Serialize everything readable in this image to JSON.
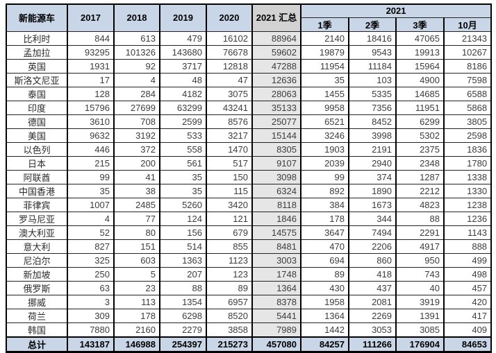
{
  "chart_data": {
    "type": "table",
    "corner_header": "新能源车",
    "year_headers": [
      "2017",
      "2018",
      "2019",
      "2020"
    ],
    "summary_header": "2021 汇总",
    "group_header": "2021",
    "sub_headers": [
      "1季",
      "2季",
      "3季",
      "10月"
    ],
    "rows": [
      {
        "name": "比利时",
        "values": [
          844,
          613,
          479,
          16102,
          88964,
          2140,
          18416,
          47065,
          21343
        ]
      },
      {
        "name": "孟加拉",
        "values": [
          93295,
          101326,
          143680,
          76678,
          59602,
          19879,
          9543,
          19913,
          10267
        ]
      },
      {
        "name": "英国",
        "values": [
          1931,
          92,
          3717,
          12818,
          47288,
          11954,
          11184,
          15964,
          8186
        ]
      },
      {
        "name": "斯洛文尼亚",
        "values": [
          17,
          4,
          48,
          47,
          12636,
          35,
          103,
          4900,
          7598
        ]
      },
      {
        "name": "泰国",
        "values": [
          128,
          284,
          4182,
          3075,
          28063,
          1455,
          5335,
          14685,
          6588
        ]
      },
      {
        "name": "印度",
        "values": [
          15796,
          27699,
          63299,
          43241,
          35133,
          9958,
          7356,
          11951,
          5868
        ]
      },
      {
        "name": "德国",
        "values": [
          3610,
          708,
          2599,
          8576,
          25077,
          6521,
          8452,
          6299,
          3805
        ]
      },
      {
        "name": "美国",
        "values": [
          9632,
          3192,
          533,
          3217,
          15144,
          3246,
          3998,
          5302,
          2598
        ]
      },
      {
        "name": "以色列",
        "values": [
          446,
          372,
          558,
          1470,
          8305,
          1903,
          2191,
          2375,
          1836
        ]
      },
      {
        "name": "日本",
        "values": [
          215,
          200,
          561,
          517,
          9107,
          2039,
          2940,
          2348,
          1780
        ]
      },
      {
        "name": "阿联酋",
        "values": [
          99,
          41,
          35,
          150,
          3098,
          99,
          374,
          1287,
          1338
        ]
      },
      {
        "name": "中国香港",
        "values": [
          35,
          38,
          35,
          115,
          6324,
          892,
          1890,
          2212,
          1330
        ]
      },
      {
        "name": "菲律宾",
        "values": [
          1007,
          2485,
          5260,
          3420,
          8118,
          384,
          1673,
          4823,
          1238
        ]
      },
      {
        "name": "罗马尼亚",
        "values": [
          4,
          77,
          124,
          121,
          1846,
          178,
          344,
          88,
          1236
        ]
      },
      {
        "name": "澳大利亚",
        "values": [
          52,
          80,
          156,
          679,
          14575,
          3647,
          7494,
          2291,
          1143
        ]
      },
      {
        "name": "意大利",
        "values": [
          827,
          151,
          514,
          855,
          8481,
          470,
          2206,
          4917,
          888
        ]
      },
      {
        "name": "尼泊尔",
        "values": [
          325,
          603,
          1363,
          1123,
          3003,
          694,
          860,
          950,
          499
        ]
      },
      {
        "name": "新加坡",
        "values": [
          250,
          5,
          207,
          123,
          1748,
          89,
          418,
          743,
          498
        ]
      },
      {
        "name": "俄罗斯",
        "values": [
          63,
          23,
          88,
          89,
          1364,
          430,
          437,
          40,
          457
        ]
      },
      {
        "name": "挪威",
        "values": [
          3,
          113,
          1354,
          6957,
          8378,
          1958,
          2081,
          3919,
          420
        ]
      },
      {
        "name": "荷兰",
        "values": [
          309,
          178,
          6298,
          8520,
          5441,
          1364,
          2269,
          1391,
          417
        ]
      },
      {
        "name": "韩国",
        "values": [
          7880,
          2160,
          2279,
          3858,
          7989,
          1442,
          3053,
          3085,
          409
        ]
      }
    ],
    "total": {
      "name": "总计",
      "values": [
        143187,
        146988,
        254397,
        215273,
        457080,
        84257,
        111266,
        176904,
        84653
      ]
    }
  },
  "colors": {
    "header_bg": "#c8d6e7",
    "summary_header_bg": "#d2d2d2",
    "summary_cell_bg": "#e6e6e6",
    "total_row_bg": "#c8d6e7",
    "border": "#000000"
  }
}
